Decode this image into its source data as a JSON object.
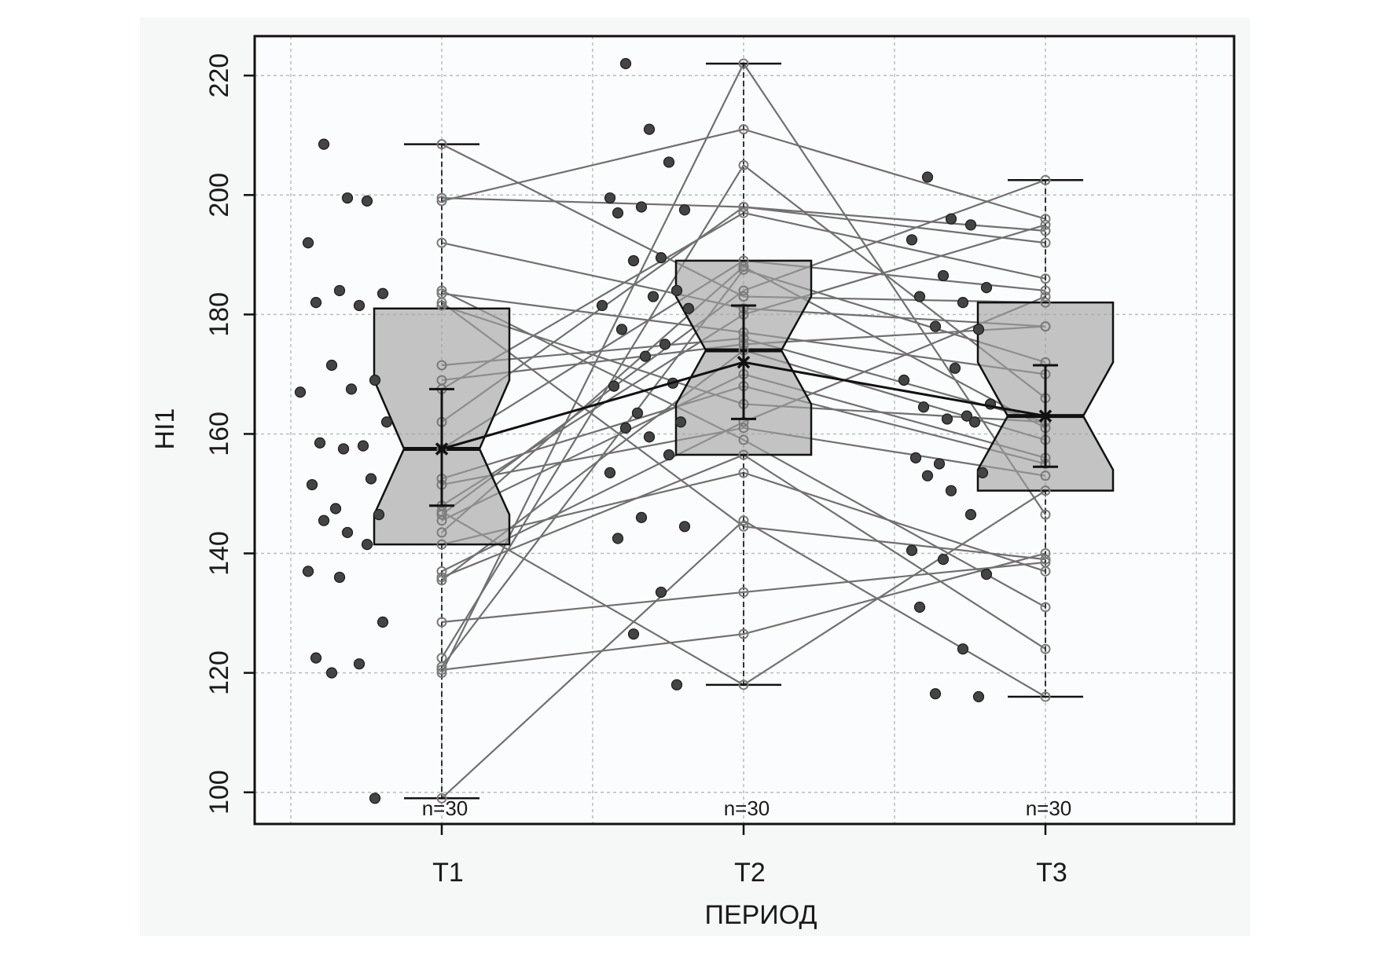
{
  "chart_data": {
    "type": "box",
    "xlabel": "ПЕРИОД",
    "ylabel": "HI1",
    "ylim": [
      94,
      227
    ],
    "yticks": [
      100,
      120,
      140,
      160,
      180,
      200,
      220
    ],
    "categories": [
      "T1",
      "T2",
      "T3"
    ],
    "n_labels": [
      "n=30",
      "n=30",
      "n=30"
    ],
    "grid": true,
    "boxes": [
      {
        "category": "T1",
        "min": 99,
        "q1": 141.5,
        "median": 157.5,
        "q3": 181,
        "max": 208.5,
        "notch_low": 146.5,
        "notch_high": 169,
        "mean": 157.5,
        "ci_low": 148,
        "ci_high": 167.5
      },
      {
        "category": "T2",
        "min": 118,
        "q1": 156.5,
        "median": 174,
        "q3": 189,
        "max": 222,
        "notch_low": 165,
        "notch_high": 183,
        "mean": 172,
        "ci_low": 162.5,
        "ci_high": 181.5
      },
      {
        "category": "T3",
        "min": 116,
        "q1": 150.5,
        "median": 163,
        "q3": 182,
        "max": 202.5,
        "notch_low": 154,
        "notch_high": 172,
        "mean": 163,
        "ci_low": 154.5,
        "ci_high": 171.5
      }
    ],
    "subjects": [
      [
        208.5,
        183,
        182
      ],
      [
        199.5,
        198,
        192
      ],
      [
        199,
        211,
        196
      ],
      [
        192,
        181,
        178
      ],
      [
        184,
        159,
        131
      ],
      [
        183.5,
        177,
        170
      ],
      [
        182,
        144.5,
        139
      ],
      [
        181.5,
        165,
        162
      ],
      [
        171.5,
        176,
        162
      ],
      [
        169,
        175,
        178
      ],
      [
        167.5,
        197,
        186
      ],
      [
        162,
        198,
        194
      ],
      [
        157.5,
        189,
        184
      ],
      [
        152.5,
        168,
        155
      ],
      [
        151.5,
        161,
        153
      ],
      [
        148,
        180,
        195
      ],
      [
        146.5,
        184,
        202.5
      ],
      [
        145.5,
        170,
        156
      ],
      [
        143.5,
        188,
        161
      ],
      [
        141.5,
        153.5,
        137
      ],
      [
        137,
        162,
        183
      ],
      [
        136,
        156.5,
        124
      ],
      [
        128.5,
        133.5,
        138.5
      ],
      [
        122.5,
        205,
        166
      ],
      [
        121,
        187.5,
        172
      ],
      [
        120.5,
        126.5,
        140
      ],
      [
        120,
        222,
        146.5
      ],
      [
        135.5,
        174,
        159
      ],
      [
        99,
        145.5,
        116
      ],
      [
        147,
        118,
        150.5
      ]
    ],
    "jitter_points": {
      "T1": [
        208.5,
        199.5,
        199,
        192,
        184,
        183.5,
        182,
        181.5,
        171.5,
        169,
        167.5,
        167,
        162,
        158.5,
        158,
        157.5,
        152.5,
        151.5,
        147.5,
        146.5,
        145.5,
        143.5,
        141.5,
        137,
        136,
        128.5,
        122.5,
        121.5,
        120,
        99
      ],
      "T2": [
        222,
        211,
        205.5,
        199.5,
        198,
        197.5,
        197,
        189.5,
        189,
        184,
        183,
        181.5,
        181,
        177.5,
        175,
        173,
        168.5,
        168,
        163.5,
        162,
        161,
        159.5,
        156.5,
        153.5,
        146,
        144.5,
        142.5,
        133.5,
        126.5,
        118
      ],
      "T3": [
        203,
        196,
        195,
        192.5,
        186.5,
        184.5,
        183,
        182,
        178,
        177.5,
        171,
        169,
        165,
        164.5,
        163,
        162.5,
        162,
        156,
        155,
        153.5,
        153,
        150.5,
        146.5,
        140.5,
        139,
        136.5,
        131,
        124,
        116.5,
        116
      ]
    }
  }
}
